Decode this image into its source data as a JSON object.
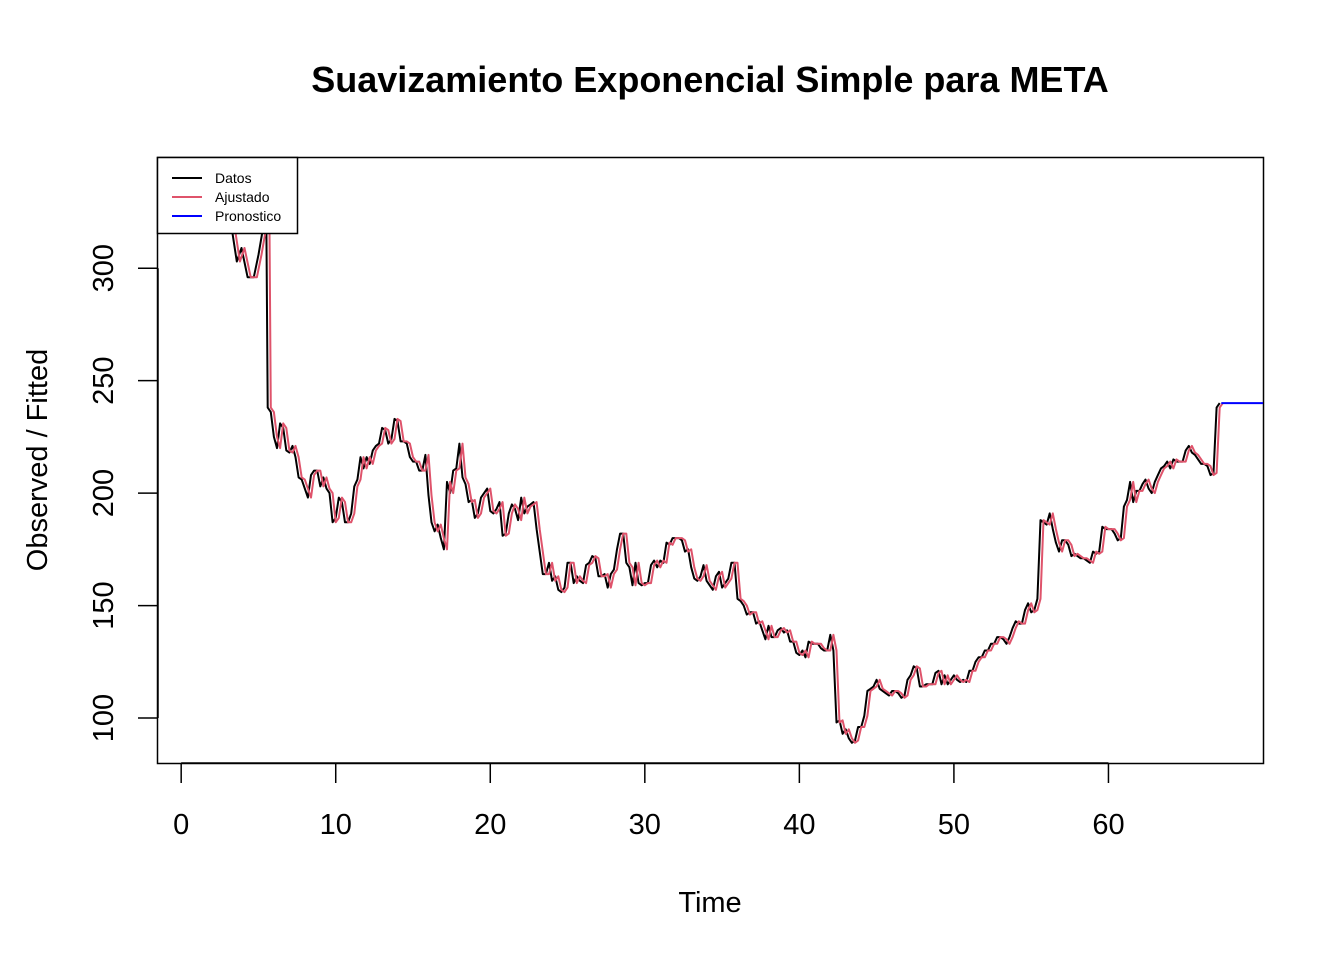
{
  "chart_data": {
    "type": "line",
    "title": "Suavizamiento Exponencial Simple para META",
    "xlabel": "Time",
    "ylabel": "Observed / Fitted",
    "xlim": [
      -1.5,
      70
    ],
    "ylim": [
      80,
      349
    ],
    "x_ticks": [
      "0",
      "10",
      "20",
      "30",
      "40",
      "50",
      "60"
    ],
    "y_ticks": [
      "100",
      "150",
      "200",
      "250",
      "300"
    ],
    "grid": false,
    "legend_position": "top-left",
    "legend": [
      {
        "label": "Datos",
        "color": "#000000"
      },
      {
        "label": "Ajustado",
        "color": "#DF536B"
      },
      {
        "label": "Pronostico",
        "color": "#0000FF"
      }
    ],
    "series": [
      {
        "name": "Datos",
        "color": "#000000",
        "points": [
          [
            0.0,
            336
          ],
          [
            1.5,
            334
          ],
          [
            3.0,
            330
          ],
          [
            3.6,
            303
          ],
          [
            3.9,
            309
          ],
          [
            4.3,
            296
          ],
          [
            4.7,
            296
          ],
          [
            5.0,
            306
          ],
          [
            5.3,
            318
          ],
          [
            5.5,
            330
          ],
          [
            5.6,
            238
          ],
          [
            5.8,
            236
          ],
          [
            6.0,
            225
          ],
          [
            6.2,
            220
          ],
          [
            6.4,
            231
          ],
          [
            6.6,
            229
          ],
          [
            6.8,
            219
          ],
          [
            7.0,
            218
          ],
          [
            7.2,
            221
          ],
          [
            7.4,
            216
          ],
          [
            7.6,
            207
          ],
          [
            7.8,
            206
          ],
          [
            8.0,
            202
          ],
          [
            8.2,
            198
          ],
          [
            8.4,
            208
          ],
          [
            8.6,
            210
          ],
          [
            8.8,
            210
          ],
          [
            9.0,
            203
          ],
          [
            9.2,
            207
          ],
          [
            9.4,
            202
          ],
          [
            9.6,
            200
          ],
          [
            9.8,
            187
          ],
          [
            10.0,
            189
          ],
          [
            10.2,
            198
          ],
          [
            10.4,
            196
          ],
          [
            10.6,
            187
          ],
          [
            10.8,
            187
          ],
          [
            11.0,
            191
          ],
          [
            11.2,
            203
          ],
          [
            11.4,
            206
          ],
          [
            11.6,
            216
          ],
          [
            11.8,
            211
          ],
          [
            12.0,
            216
          ],
          [
            12.2,
            213
          ],
          [
            12.4,
            219
          ],
          [
            12.6,
            221
          ],
          [
            12.8,
            222
          ],
          [
            13.0,
            229
          ],
          [
            13.2,
            228
          ],
          [
            13.4,
            222
          ],
          [
            13.6,
            224
          ],
          [
            13.8,
            233
          ],
          [
            14.0,
            232
          ],
          [
            14.2,
            223
          ],
          [
            14.4,
            223
          ],
          [
            14.6,
            222
          ],
          [
            14.8,
            216
          ],
          [
            15.0,
            214
          ],
          [
            15.2,
            214
          ],
          [
            15.4,
            210
          ],
          [
            15.6,
            210
          ],
          [
            15.8,
            217
          ],
          [
            16.0,
            199
          ],
          [
            16.2,
            187
          ],
          [
            16.4,
            183
          ],
          [
            16.6,
            186
          ],
          [
            16.8,
            180
          ],
          [
            17.0,
            175
          ],
          [
            17.2,
            205
          ],
          [
            17.4,
            200
          ],
          [
            17.6,
            210
          ],
          [
            17.8,
            211
          ],
          [
            18.0,
            222
          ],
          [
            18.2,
            207
          ],
          [
            18.4,
            204
          ],
          [
            18.6,
            196
          ],
          [
            18.8,
            197
          ],
          [
            19.0,
            189
          ],
          [
            19.2,
            191
          ],
          [
            19.4,
            198
          ],
          [
            19.6,
            200
          ],
          [
            19.8,
            202
          ],
          [
            20.0,
            192
          ],
          [
            20.2,
            191
          ],
          [
            20.4,
            193
          ],
          [
            20.6,
            196
          ],
          [
            20.8,
            181
          ],
          [
            21.0,
            182
          ],
          [
            21.2,
            191
          ],
          [
            21.4,
            195
          ],
          [
            21.6,
            193
          ],
          [
            21.8,
            188
          ],
          [
            22.0,
            198
          ],
          [
            22.2,
            191
          ],
          [
            22.4,
            194
          ],
          [
            22.6,
            195
          ],
          [
            22.8,
            196
          ],
          [
            23.0,
            184
          ],
          [
            23.2,
            174
          ],
          [
            23.4,
            164
          ],
          [
            23.6,
            164
          ],
          [
            23.8,
            169
          ],
          [
            24.0,
            161
          ],
          [
            24.2,
            163
          ],
          [
            24.4,
            157
          ],
          [
            24.6,
            156
          ],
          [
            24.8,
            158
          ],
          [
            25.0,
            169
          ],
          [
            25.2,
            169
          ],
          [
            25.4,
            160
          ],
          [
            25.6,
            163
          ],
          [
            25.8,
            161
          ],
          [
            26.0,
            160
          ],
          [
            26.2,
            168
          ],
          [
            26.4,
            169
          ],
          [
            26.6,
            172
          ],
          [
            26.8,
            171
          ],
          [
            27.0,
            163
          ],
          [
            27.2,
            163
          ],
          [
            27.4,
            164
          ],
          [
            27.6,
            158
          ],
          [
            27.8,
            164
          ],
          [
            28.0,
            166
          ],
          [
            28.2,
            175
          ],
          [
            28.4,
            182
          ],
          [
            28.6,
            182
          ],
          [
            28.8,
            169
          ],
          [
            29.0,
            167
          ],
          [
            29.2,
            159
          ],
          [
            29.4,
            169
          ],
          [
            29.6,
            160
          ],
          [
            29.8,
            159
          ],
          [
            30.0,
            160
          ],
          [
            30.2,
            160
          ],
          [
            30.4,
            168
          ],
          [
            30.6,
            170
          ],
          [
            30.8,
            167
          ],
          [
            31.0,
            170
          ],
          [
            31.2,
            169
          ],
          [
            31.4,
            178
          ],
          [
            31.6,
            177
          ],
          [
            31.8,
            180
          ],
          [
            32.0,
            180
          ],
          [
            32.2,
            180
          ],
          [
            32.4,
            179
          ],
          [
            32.6,
            174
          ],
          [
            32.8,
            175
          ],
          [
            33.0,
            167
          ],
          [
            33.2,
            162
          ],
          [
            33.4,
            161
          ],
          [
            33.6,
            163
          ],
          [
            33.8,
            168
          ],
          [
            34.0,
            161
          ],
          [
            34.2,
            159
          ],
          [
            34.4,
            157
          ],
          [
            34.6,
            163
          ],
          [
            34.8,
            165
          ],
          [
            35.0,
            158
          ],
          [
            35.2,
            160
          ],
          [
            35.4,
            162
          ],
          [
            35.6,
            169
          ],
          [
            35.8,
            169
          ],
          [
            36.0,
            153
          ],
          [
            36.2,
            152
          ],
          [
            36.4,
            150
          ],
          [
            36.6,
            146
          ],
          [
            36.8,
            147
          ],
          [
            37.0,
            147
          ],
          [
            37.2,
            142
          ],
          [
            37.4,
            143
          ],
          [
            37.6,
            139
          ],
          [
            37.8,
            135
          ],
          [
            38.0,
            141
          ],
          [
            38.2,
            136
          ],
          [
            38.4,
            136
          ],
          [
            38.6,
            139
          ],
          [
            38.8,
            140
          ],
          [
            39.0,
            138
          ],
          [
            39.2,
            139
          ],
          [
            39.4,
            134
          ],
          [
            39.6,
            134
          ],
          [
            39.8,
            129
          ],
          [
            40.0,
            128
          ],
          [
            40.2,
            130
          ],
          [
            40.4,
            127
          ],
          [
            40.6,
            134
          ],
          [
            40.8,
            133
          ],
          [
            41.0,
            133
          ],
          [
            41.2,
            133
          ],
          [
            41.4,
            131
          ],
          [
            41.6,
            130
          ],
          [
            41.8,
            130
          ],
          [
            42.0,
            137
          ],
          [
            42.2,
            130
          ],
          [
            42.4,
            98
          ],
          [
            42.6,
            99
          ],
          [
            42.8,
            93
          ],
          [
            43.0,
            95
          ],
          [
            43.2,
            91
          ],
          [
            43.4,
            89
          ],
          [
            43.6,
            90
          ],
          [
            43.8,
            96
          ],
          [
            44.0,
            96
          ],
          [
            44.2,
            101
          ],
          [
            44.4,
            112
          ],
          [
            44.6,
            113
          ],
          [
            44.8,
            114
          ],
          [
            45.0,
            117
          ],
          [
            45.2,
            113
          ],
          [
            45.4,
            112
          ],
          [
            45.6,
            111
          ],
          [
            45.8,
            110
          ],
          [
            46.0,
            112
          ],
          [
            46.2,
            112
          ],
          [
            46.4,
            111
          ],
          [
            46.6,
            109
          ],
          [
            46.8,
            110
          ],
          [
            47.0,
            117
          ],
          [
            47.2,
            119
          ],
          [
            47.4,
            123
          ],
          [
            47.6,
            122
          ],
          [
            47.8,
            114
          ],
          [
            48.0,
            114
          ],
          [
            48.2,
            115
          ],
          [
            48.4,
            115
          ],
          [
            48.6,
            115
          ],
          [
            48.8,
            120
          ],
          [
            49.0,
            121
          ],
          [
            49.2,
            115
          ],
          [
            49.4,
            119
          ],
          [
            49.6,
            115
          ],
          [
            49.8,
            117
          ],
          [
            50.0,
            119
          ],
          [
            50.2,
            117
          ],
          [
            50.4,
            116
          ],
          [
            50.6,
            117
          ],
          [
            50.8,
            116
          ],
          [
            51.0,
            121
          ],
          [
            51.2,
            121
          ],
          [
            51.4,
            125
          ],
          [
            51.6,
            127
          ],
          [
            51.8,
            127
          ],
          [
            52.0,
            130
          ],
          [
            52.2,
            130
          ],
          [
            52.4,
            133
          ],
          [
            52.6,
            133
          ],
          [
            52.8,
            136
          ],
          [
            53.0,
            136
          ],
          [
            53.2,
            135
          ],
          [
            53.4,
            133
          ],
          [
            53.6,
            136
          ],
          [
            53.8,
            140
          ],
          [
            54.0,
            143
          ],
          [
            54.2,
            142
          ],
          [
            54.4,
            142
          ],
          [
            54.6,
            148
          ],
          [
            54.8,
            151
          ],
          [
            55.0,
            147
          ],
          [
            55.2,
            148
          ],
          [
            55.4,
            153
          ],
          [
            55.6,
            188
          ],
          [
            55.8,
            187
          ],
          [
            56.0,
            186
          ],
          [
            56.2,
            191
          ],
          [
            56.4,
            184
          ],
          [
            56.6,
            178
          ],
          [
            56.8,
            174
          ],
          [
            57.0,
            179
          ],
          [
            57.2,
            179
          ],
          [
            57.4,
            177
          ],
          [
            57.6,
            172
          ],
          [
            57.8,
            173
          ],
          [
            58.0,
            172
          ],
          [
            58.2,
            171
          ],
          [
            58.4,
            171
          ],
          [
            58.6,
            170
          ],
          [
            58.8,
            169
          ],
          [
            59.0,
            174
          ],
          [
            59.2,
            173
          ],
          [
            59.4,
            174
          ],
          [
            59.6,
            185
          ],
          [
            59.8,
            184
          ],
          [
            60.0,
            184
          ],
          [
            60.2,
            184
          ],
          [
            60.4,
            182
          ],
          [
            60.6,
            179
          ],
          [
            60.8,
            180
          ],
          [
            61.0,
            194
          ],
          [
            61.2,
            197
          ],
          [
            61.4,
            205
          ],
          [
            61.6,
            196
          ],
          [
            61.8,
            201
          ],
          [
            62.0,
            201
          ],
          [
            62.2,
            204
          ],
          [
            62.4,
            206
          ],
          [
            62.6,
            202
          ],
          [
            62.8,
            200
          ],
          [
            63.0,
            205
          ],
          [
            63.2,
            208
          ],
          [
            63.4,
            211
          ],
          [
            63.6,
            212
          ],
          [
            63.8,
            214
          ],
          [
            64.0,
            211
          ],
          [
            64.2,
            215
          ],
          [
            64.4,
            214
          ],
          [
            64.6,
            214
          ],
          [
            64.8,
            214
          ],
          [
            65.0,
            219
          ],
          [
            65.2,
            221
          ],
          [
            65.4,
            218
          ],
          [
            65.6,
            217
          ],
          [
            65.8,
            215
          ],
          [
            66.0,
            213
          ],
          [
            66.2,
            213
          ],
          [
            66.4,
            212
          ],
          [
            66.6,
            208
          ],
          [
            66.8,
            209
          ],
          [
            67.0,
            238
          ],
          [
            67.2,
            240
          ]
        ]
      },
      {
        "name": "Ajustado",
        "color": "#DF536B",
        "lag": 0.2
      },
      {
        "name": "Pronostico",
        "color": "#0000FF",
        "points": [
          [
            67.3,
            240
          ],
          [
            70.0,
            240
          ]
        ]
      }
    ]
  }
}
